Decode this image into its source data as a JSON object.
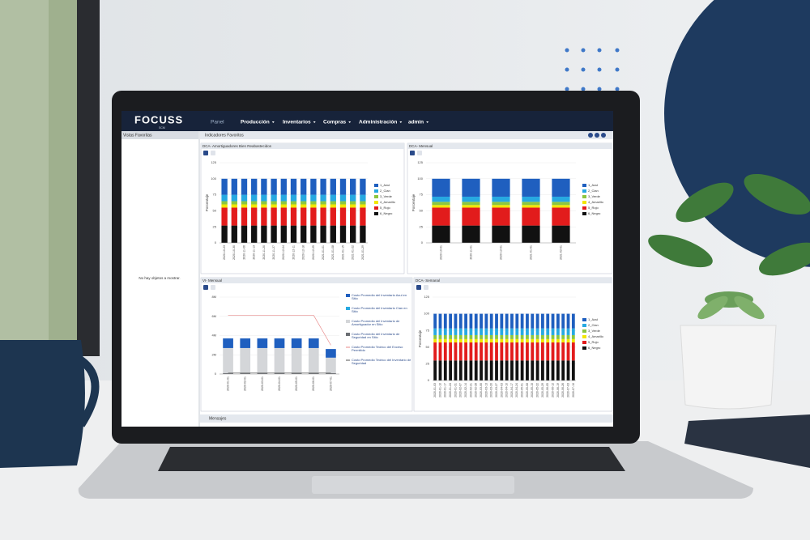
{
  "nav": {
    "brand": "FOCUSS",
    "brand_sub": "SCM",
    "items": [
      "Panel",
      "Producción",
      "Inventarios",
      "Compras",
      "Administración",
      "admin"
    ]
  },
  "sidebar": {
    "title": "Vistas Favoritas",
    "empty": "No hay objetos a mostrar."
  },
  "panel_title": "Indicadores Favoritos",
  "footer": "Mensajes",
  "chart_data": [
    {
      "type": "bar",
      "stacked": true,
      "title": "DCA- Amortiguadores Bien Reabastecidos",
      "y_label": "Porcentaje",
      "categories": [
        "2020-10-23",
        "2020-10-30",
        "2020-11-06",
        "2020-11-13",
        "2020-11-20",
        "2020-11-27",
        "2020-12-04",
        "2020-12-11",
        "2020-12-18",
        "2020-12-25",
        "2021-01-01",
        "2021-01-08",
        "2021-01-15",
        "2021-01-22",
        "2021-01-29"
      ],
      "ylim": [
        0,
        125
      ],
      "yticks": [
        0,
        25,
        50,
        75,
        100,
        125
      ],
      "grid": true,
      "series": [
        {
          "name": "1_Azul",
          "color": "#1f5fbf",
          "values": [
            25,
            25,
            25,
            25,
            25,
            25,
            25,
            25,
            25,
            25,
            25,
            25,
            25,
            25,
            25
          ]
        },
        {
          "name": "2_Cian",
          "color": "#27a9e1",
          "values": [
            10,
            10,
            10,
            10,
            10,
            10,
            10,
            10,
            10,
            10,
            10,
            10,
            10,
            10,
            10
          ]
        },
        {
          "name": "3_Verde",
          "color": "#8cc63f",
          "values": [
            5,
            5,
            5,
            5,
            5,
            5,
            5,
            5,
            5,
            5,
            5,
            5,
            5,
            5,
            5
          ]
        },
        {
          "name": "4_Amarillo",
          "color": "#f2e600",
          "values": [
            5,
            5,
            5,
            5,
            5,
            5,
            5,
            5,
            5,
            5,
            5,
            5,
            5,
            5,
            5
          ]
        },
        {
          "name": "5_Rojo",
          "color": "#e21c1c",
          "values": [
            28,
            28,
            28,
            28,
            28,
            28,
            28,
            28,
            28,
            28,
            28,
            28,
            28,
            28,
            28
          ]
        },
        {
          "name": "6_Negro",
          "color": "#111111",
          "values": [
            27,
            27,
            27,
            27,
            27,
            27,
            27,
            27,
            27,
            27,
            27,
            27,
            27,
            27,
            27
          ]
        }
      ]
    },
    {
      "type": "bar",
      "stacked": true,
      "title": "DCA- Mensual",
      "y_label": "Porcentaje",
      "categories": [
        "2020-10-01",
        "2020-11-01",
        "2020-12-01",
        "2021-01-01",
        "2021-02-01"
      ],
      "ylim": [
        0,
        125
      ],
      "yticks": [
        0,
        25,
        50,
        75,
        100,
        125
      ],
      "grid": true,
      "series": [
        {
          "name": "1_Azul",
          "color": "#1f5fbf",
          "values": [
            28,
            28,
            28,
            28,
            28
          ]
        },
        {
          "name": "2_Cian",
          "color": "#27a9e1",
          "values": [
            8,
            8,
            8,
            8,
            8
          ]
        },
        {
          "name": "3_Verde",
          "color": "#8cc63f",
          "values": [
            5,
            5,
            5,
            5,
            5
          ]
        },
        {
          "name": "4_Amarillo",
          "color": "#f2e600",
          "values": [
            4,
            4,
            4,
            4,
            4
          ]
        },
        {
          "name": "5_Rojo",
          "color": "#e21c1c",
          "values": [
            28,
            28,
            28,
            28,
            28
          ]
        },
        {
          "name": "6_Negro",
          "color": "#111111",
          "values": [
            27,
            27,
            27,
            27,
            27
          ]
        }
      ]
    },
    {
      "type": "bar",
      "stacked": true,
      "title": "VI- Mensual",
      "categories": [
        "2020-01-01",
        "2020-02-01",
        "2020-03-01",
        "2020-04-01",
        "2020-05-01",
        "2020-06-01",
        "2020-07-01"
      ],
      "ylim": [
        0,
        8000000
      ],
      "yticks": [
        0,
        {
          "value": 2000000,
          "label": "2M"
        },
        {
          "value": 4000000,
          "label": "4M"
        },
        {
          "value": 6000000,
          "label": "6M"
        },
        {
          "value": 8000000,
          "label": "8M"
        }
      ],
      "grid": true,
      "series": [
        {
          "name": "Costo Promedio del Inventario Azul en Sitio",
          "color": "#1f5fbf",
          "values": [
            1000000,
            1000000,
            1000000,
            1000000,
            1000000,
            1000000,
            900000
          ]
        },
        {
          "name": "Costo Promedio del Inventario Cian en Sitio",
          "color": "#27a9e1",
          "values": [
            0,
            0,
            0,
            0,
            0,
            0,
            0
          ]
        },
        {
          "name": "Costo Promedio del Inventario de Amortiguador en Sitio",
          "color": "#d4d6d9",
          "values": [
            2600000,
            2600000,
            2600000,
            2600000,
            2600000,
            2600000,
            1600000
          ]
        },
        {
          "name": "Costo Promedio del Inventario de Seguridad en Sitio",
          "color": "#6b6e73",
          "values": [
            100000,
            100000,
            100000,
            100000,
            100000,
            100000,
            100000
          ]
        },
        {
          "name": "Costo Promedio Teórico del Exceso Permitido",
          "color": "#e88a8a",
          "type": "line",
          "values": [
            6100000,
            6100000,
            6100000,
            6100000,
            6100000,
            6100000,
            3000000
          ]
        },
        {
          "name": "Costo Promedio Teórico del Inventario de Seguridad",
          "color": "#555555",
          "type": "line",
          "values": [
            100000,
            100000,
            100000,
            100000,
            100000,
            100000,
            100000
          ]
        }
      ]
    },
    {
      "type": "bar",
      "stacked": true,
      "title": "DCA- Semanal",
      "y_label": "Porcentaje",
      "categories": [
        "2020-01-03",
        "2020-01-10",
        "2020-01-17",
        "2020-01-24",
        "2020-01-31",
        "2020-02-07",
        "2020-02-14",
        "2020-02-21",
        "2020-02-28",
        "2020-03-06",
        "2020-03-13",
        "2020-03-20",
        "2020-03-27",
        "2020-04-03",
        "2020-04-10",
        "2020-04-17",
        "2020-04-24",
        "2020-05-01",
        "2020-05-08",
        "2020-05-15",
        "2020-05-22",
        "2020-05-29",
        "2020-06-05",
        "2020-06-12",
        "2020-06-19",
        "2020-06-26",
        "2020-07-03",
        "2020-07-10"
      ],
      "ylim": [
        0,
        125
      ],
      "yticks": [
        0,
        25,
        50,
        75,
        100,
        125
      ],
      "grid": true,
      "series": [
        {
          "name": "1_Azul",
          "color": "#1f5fbf",
          "values": [
            22,
            22,
            22,
            22,
            22,
            22,
            22,
            22,
            22,
            22,
            22,
            22,
            22,
            22,
            22,
            22,
            22,
            22,
            22,
            22,
            22,
            22,
            22,
            22,
            22,
            22,
            22,
            22
          ]
        },
        {
          "name": "2_Cian",
          "color": "#27a9e1",
          "values": [
            10,
            10,
            10,
            10,
            10,
            10,
            10,
            10,
            10,
            10,
            10,
            10,
            10,
            10,
            10,
            10,
            10,
            10,
            10,
            10,
            10,
            10,
            10,
            10,
            10,
            10,
            10,
            10
          ]
        },
        {
          "name": "3_Verde",
          "color": "#8cc63f",
          "values": [
            6,
            6,
            6,
            6,
            6,
            6,
            6,
            6,
            6,
            6,
            6,
            6,
            6,
            6,
            6,
            6,
            6,
            6,
            6,
            6,
            6,
            6,
            6,
            6,
            6,
            6,
            6,
            6
          ]
        },
        {
          "name": "4_Amarillo",
          "color": "#f2e600",
          "values": [
            5,
            5,
            5,
            5,
            5,
            5,
            5,
            5,
            5,
            5,
            5,
            5,
            5,
            5,
            5,
            5,
            5,
            5,
            5,
            5,
            5,
            5,
            5,
            5,
            5,
            5,
            5,
            5
          ]
        },
        {
          "name": "5_Rojo",
          "color": "#e21c1c",
          "values": [
            27,
            27,
            27,
            27,
            27,
            27,
            27,
            27,
            27,
            27,
            27,
            27,
            27,
            27,
            27,
            27,
            27,
            27,
            27,
            27,
            27,
            27,
            27,
            27,
            27,
            27,
            27,
            27
          ]
        },
        {
          "name": "6_Negro",
          "color": "#111111",
          "values": [
            30,
            30,
            30,
            30,
            30,
            30,
            30,
            30,
            30,
            30,
            30,
            30,
            30,
            30,
            30,
            30,
            30,
            30,
            30,
            30,
            30,
            30,
            30,
            30,
            30,
            30,
            30,
            30
          ]
        }
      ]
    }
  ]
}
